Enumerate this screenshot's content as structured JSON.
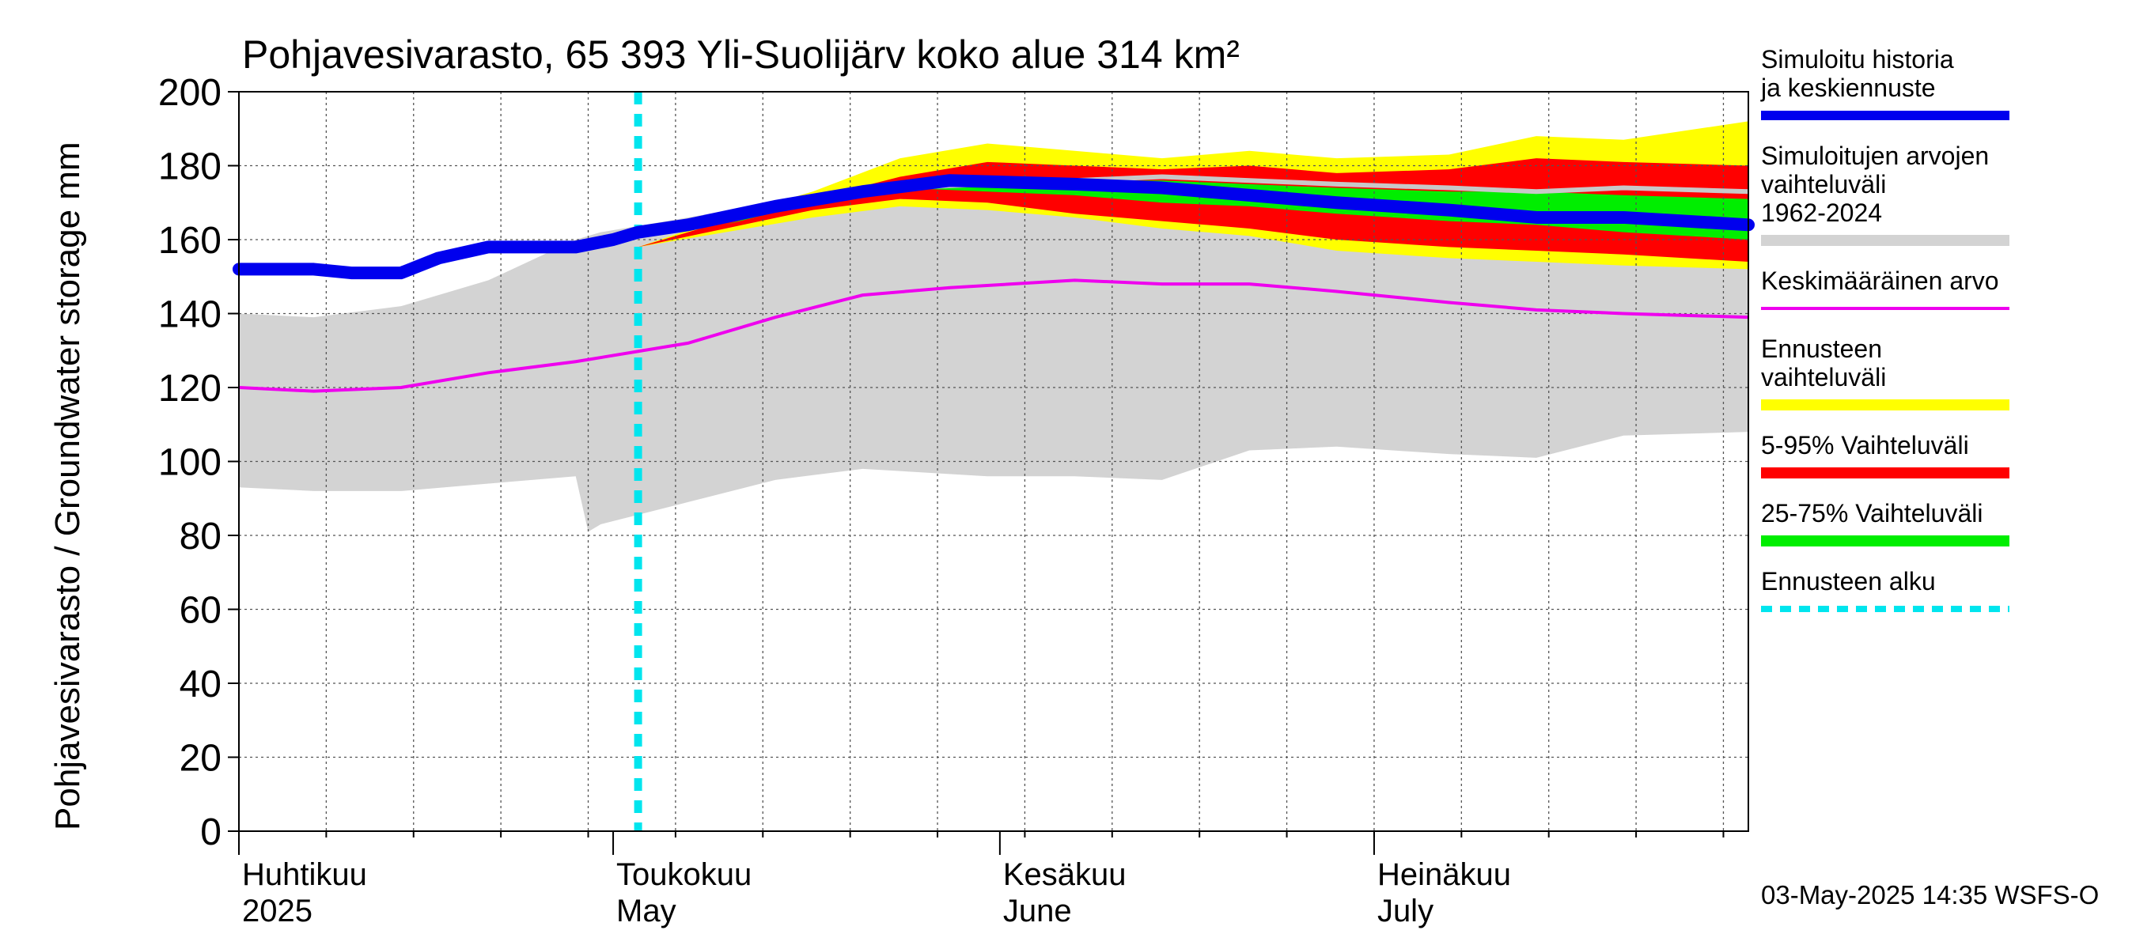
{
  "chart_data": {
    "type": "area",
    "title": "Pohjavesivarasto, 65 393 Yli-Suolijärv koko alue 314 km²",
    "ylabel": "Pohjavesivarasto / Groundwater storage   mm",
    "ylim": [
      0,
      200
    ],
    "yticks": [
      0,
      20,
      40,
      60,
      80,
      100,
      120,
      140,
      160,
      180,
      200
    ],
    "xlim": [
      "2025-04-01",
      "2025-07-31"
    ],
    "grid": true,
    "legend_position": "right",
    "timestamp": "03-May-2025 14:35 WSFS-O",
    "forecast_start": "2025-05-03",
    "month_labels": [
      {
        "date": "2025-04-01",
        "fi": "Huhtikuu",
        "en": "2025"
      },
      {
        "date": "2025-05-01",
        "fi": "Toukokuu",
        "en": "May"
      },
      {
        "date": "2025-06-01",
        "fi": "Kesäkuu",
        "en": "June"
      },
      {
        "date": "2025-07-01",
        "fi": "Heinäkuu",
        "en": "July"
      }
    ],
    "legend": [
      {
        "key": "sim",
        "label": "Simuloitu historia ja keskiennuste",
        "color": "#0000ee"
      },
      {
        "key": "hist",
        "label": "Simuloitujen arvojen vaihteluväli 1962-2024",
        "color": "#d3d3d3"
      },
      {
        "key": "mean",
        "label": "Keskimääräinen arvo",
        "color": "#ee00ee"
      },
      {
        "key": "fc_range",
        "label": "Ennusteen vaihteluväli",
        "color": "#ffff00"
      },
      {
        "key": "p5_95",
        "label": "5-95% Vaihteluväli",
        "color": "#ff0000"
      },
      {
        "key": "p25_75",
        "label": "25-75% Vaihteluväli",
        "color": "#00ee00"
      },
      {
        "key": "fc_start",
        "label": "Ennusteen alku",
        "color": "#00e5ee"
      }
    ],
    "series": [
      {
        "key": "hist",
        "type": "band",
        "x": [
          "2025-04-01",
          "2025-04-07",
          "2025-04-14",
          "2025-04-21",
          "2025-04-28",
          "2025-04-29",
          "2025-04-30",
          "2025-05-07",
          "2025-05-14",
          "2025-05-21",
          "2025-05-31",
          "2025-06-07",
          "2025-06-14",
          "2025-06-21",
          "2025-06-28",
          "2025-07-07",
          "2025-07-14",
          "2025-07-21",
          "2025-07-31"
        ],
        "lower": [
          93,
          92,
          92,
          94,
          96,
          81,
          83,
          89,
          95,
          98,
          96,
          96,
          95,
          103,
          104,
          102,
          101,
          107,
          108
        ],
        "upper": [
          140,
          139,
          142,
          149,
          160,
          161,
          162,
          166,
          170,
          172,
          174,
          175,
          176,
          175,
          172,
          168,
          163,
          160,
          156
        ]
      },
      {
        "key": "fc_range",
        "type": "band",
        "x": [
          "2025-05-03",
          "2025-05-10",
          "2025-05-17",
          "2025-05-24",
          "2025-05-31",
          "2025-06-07",
          "2025-06-14",
          "2025-06-21",
          "2025-06-28",
          "2025-07-07",
          "2025-07-14",
          "2025-07-21",
          "2025-07-31"
        ],
        "lower": [
          158,
          162,
          166,
          169,
          168,
          166,
          163,
          161,
          157,
          155,
          154,
          153,
          152
        ],
        "upper": [
          158,
          166,
          173,
          182,
          186,
          184,
          182,
          184,
          182,
          183,
          188,
          187,
          192
        ]
      },
      {
        "key": "p5_95",
        "type": "band",
        "x": [
          "2025-05-03",
          "2025-05-10",
          "2025-05-17",
          "2025-05-24",
          "2025-05-31",
          "2025-06-07",
          "2025-06-14",
          "2025-06-21",
          "2025-06-28",
          "2025-07-07",
          "2025-07-14",
          "2025-07-21",
          "2025-07-31"
        ],
        "lower": [
          158,
          163,
          168,
          171,
          170,
          167,
          165,
          163,
          160,
          158,
          157,
          156,
          154
        ],
        "upper": [
          158,
          165,
          171,
          177,
          181,
          180,
          179,
          180,
          178,
          179,
          182,
          181,
          180
        ]
      },
      {
        "key": "p25_75",
        "type": "band",
        "x": [
          "2025-05-03",
          "2025-05-10",
          "2025-05-17",
          "2025-05-24",
          "2025-05-31",
          "2025-06-07",
          "2025-06-14",
          "2025-06-21",
          "2025-06-28",
          "2025-07-07",
          "2025-07-14",
          "2025-07-21",
          "2025-07-31"
        ],
        "lower": [
          158,
          164,
          170,
          174,
          173,
          172,
          170,
          169,
          167,
          165,
          164,
          162,
          160
        ],
        "upper": [
          158,
          164,
          171,
          175,
          176,
          176,
          176,
          175,
          174,
          173,
          173,
          172,
          171
        ]
      },
      {
        "key": "hist_max",
        "type": "line",
        "x": [
          "2025-05-24",
          "2025-05-31",
          "2025-06-07",
          "2025-06-14",
          "2025-06-21",
          "2025-06-28",
          "2025-07-07",
          "2025-07-14",
          "2025-07-21",
          "2025-07-31"
        ],
        "y": [
          174,
          175,
          176,
          177,
          176,
          175,
          174,
          173,
          174,
          173
        ]
      },
      {
        "key": "mean",
        "type": "line",
        "x": [
          "2025-04-01",
          "2025-04-07",
          "2025-04-14",
          "2025-04-21",
          "2025-04-28",
          "2025-05-07",
          "2025-05-14",
          "2025-05-21",
          "2025-05-28",
          "2025-06-07",
          "2025-06-14",
          "2025-06-21",
          "2025-06-28",
          "2025-07-07",
          "2025-07-14",
          "2025-07-21",
          "2025-07-31"
        ],
        "y": [
          120,
          119,
          120,
          124,
          127,
          132,
          139,
          145,
          147,
          149,
          148,
          148,
          146,
          143,
          141,
          140,
          139
        ]
      },
      {
        "key": "sim",
        "type": "line",
        "x": [
          "2025-04-01",
          "2025-04-07",
          "2025-04-10",
          "2025-04-14",
          "2025-04-17",
          "2025-04-21",
          "2025-04-28",
          "2025-05-01",
          "2025-05-03",
          "2025-05-07",
          "2025-05-14",
          "2025-05-21",
          "2025-05-28",
          "2025-06-07",
          "2025-06-14",
          "2025-06-21",
          "2025-06-28",
          "2025-07-07",
          "2025-07-14",
          "2025-07-21",
          "2025-07-31"
        ],
        "y": [
          152,
          152,
          151,
          151,
          155,
          158,
          158,
          160,
          162,
          164,
          169,
          173,
          176,
          175,
          174,
          172,
          170,
          168,
          166,
          166,
          164
        ]
      },
      {
        "key": "fc_start",
        "type": "vline",
        "x": "2025-05-03"
      }
    ]
  }
}
